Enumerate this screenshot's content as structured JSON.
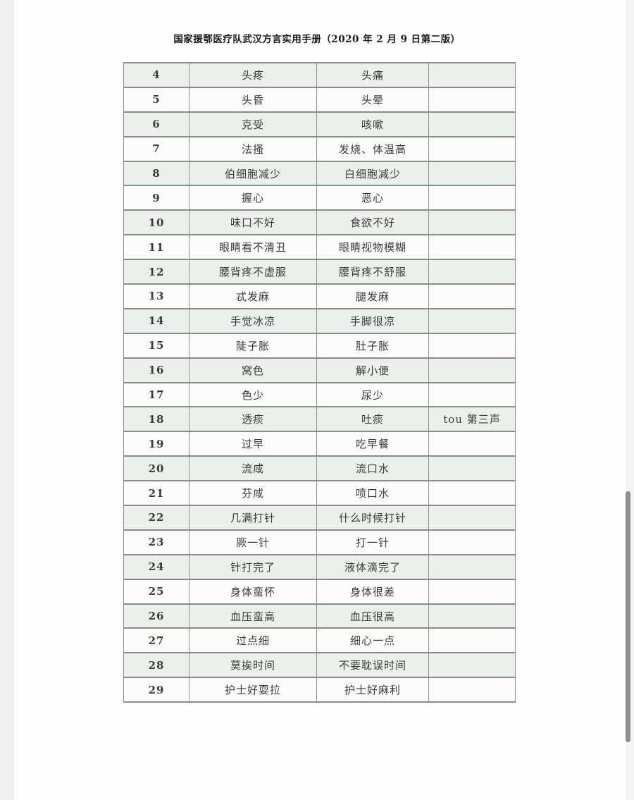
{
  "page": {
    "title": "国家援鄂医疗队武汉方言实用手册（2020 年 2 月 9 日第二版）"
  },
  "table": {
    "rows": [
      {
        "num": "4",
        "dialect": "头疼",
        "meaning": "头痛",
        "note": ""
      },
      {
        "num": "5",
        "dialect": "头昏",
        "meaning": "头晕",
        "note": ""
      },
      {
        "num": "6",
        "dialect": "克受",
        "meaning": "咳嗽",
        "note": ""
      },
      {
        "num": "7",
        "dialect": "法搔",
        "meaning": "发烧、体温高",
        "note": ""
      },
      {
        "num": "8",
        "dialect": "伯细胞减少",
        "meaning": "白细胞减少",
        "note": ""
      },
      {
        "num": "9",
        "dialect": "握心",
        "meaning": "恶心",
        "note": ""
      },
      {
        "num": "10",
        "dialect": "味口不好",
        "meaning": "食欲不好",
        "note": ""
      },
      {
        "num": "11",
        "dialect": "眼睛看不清丑",
        "meaning": "眼睛视物模糊",
        "note": ""
      },
      {
        "num": "12",
        "dialect": "腰背疼不虚服",
        "meaning": "腰背疼不舒服",
        "note": ""
      },
      {
        "num": "13",
        "dialect": "忒发麻",
        "meaning": "腿发麻",
        "note": ""
      },
      {
        "num": "14",
        "dialect": "手觉冰凉",
        "meaning": "手脚很凉",
        "note": ""
      },
      {
        "num": "15",
        "dialect": "陡子胀",
        "meaning": "肚子胀",
        "note": ""
      },
      {
        "num": "16",
        "dialect": "窝色",
        "meaning": "解小便",
        "note": ""
      },
      {
        "num": "17",
        "dialect": "色少",
        "meaning": "尿少",
        "note": ""
      },
      {
        "num": "18",
        "dialect": "透痰",
        "meaning": "吐痰",
        "note": "tou 第三声"
      },
      {
        "num": "19",
        "dialect": "过早",
        "meaning": "吃早餐",
        "note": ""
      },
      {
        "num": "20",
        "dialect": "流咸",
        "meaning": "流口水",
        "note": ""
      },
      {
        "num": "21",
        "dialect": "芬咸",
        "meaning": "喷口水",
        "note": ""
      },
      {
        "num": "22",
        "dialect": "几满打针",
        "meaning": "什么时候打针",
        "note": ""
      },
      {
        "num": "23",
        "dialect": "厥一针",
        "meaning": "打一针",
        "note": ""
      },
      {
        "num": "24",
        "dialect": "针打完了",
        "meaning": "液体滴完了",
        "note": ""
      },
      {
        "num": "25",
        "dialect": "身体蛮怀",
        "meaning": "身体很差",
        "note": ""
      },
      {
        "num": "26",
        "dialect": "血压蛮高",
        "meaning": "血压很高",
        "note": ""
      },
      {
        "num": "27",
        "dialect": "过点细",
        "meaning": "细心一点",
        "note": ""
      },
      {
        "num": "28",
        "dialect": "莫挨时间",
        "meaning": "不要耽误时间",
        "note": ""
      },
      {
        "num": "29",
        "dialect": "护士好耍拉",
        "meaning": "护士好麻利",
        "note": ""
      }
    ]
  },
  "colors": {
    "row_green": "#e9f1ea",
    "row_white": "#fbfbfb",
    "table_border": "#8c8c8c",
    "scrollbar_thumb": "#8f9094",
    "gutter": "#eff0f2"
  },
  "icons": {
    "scrollbar_thumb": "scrollbar-thumb"
  }
}
